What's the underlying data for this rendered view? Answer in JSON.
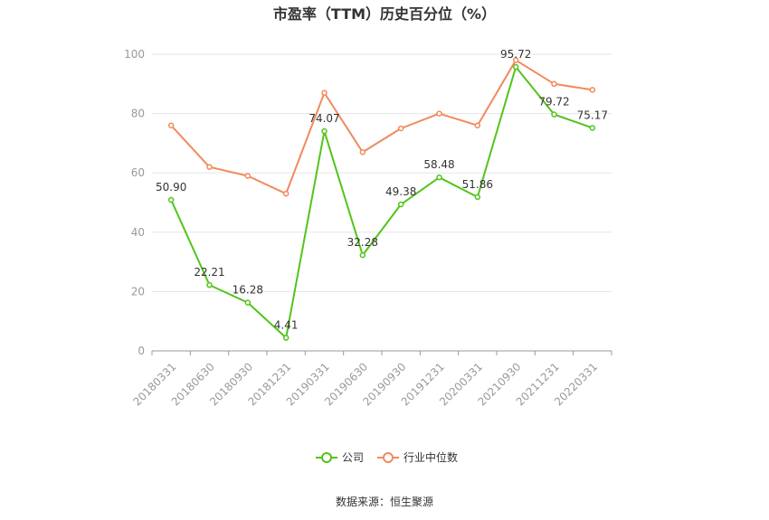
{
  "chart_data": {
    "type": "line",
    "title": "市盈率（TTM）历史百分位（%）",
    "categories": [
      "20180331",
      "20180630",
      "20180930",
      "20181231",
      "20190331",
      "20190630",
      "20190930",
      "20191231",
      "20200331",
      "20210930",
      "20211231",
      "20220331"
    ],
    "series": [
      {
        "name": "公司",
        "color": "#52c41a",
        "values": [
          50.9,
          22.21,
          16.28,
          4.41,
          74.07,
          32.28,
          49.38,
          58.48,
          51.86,
          95.72,
          79.72,
          75.17
        ],
        "labels": [
          "50.90",
          "22.21",
          "16.28",
          "4.41",
          "74.07",
          "32.28",
          "49.38",
          "58.48",
          "51.86",
          "95.72",
          "79.72",
          "75.17"
        ]
      },
      {
        "name": "行业中位数",
        "color": "#f08a5d",
        "values": [
          76,
          62,
          59,
          53,
          87,
          67,
          75,
          80,
          76,
          98,
          90,
          88
        ]
      }
    ],
    "ylim": [
      0,
      100
    ],
    "yticks": [
      0,
      20,
      40,
      60,
      80,
      100
    ],
    "grid": true,
    "legend": "bottom-center"
  },
  "source": "数据来源：恒生聚源"
}
